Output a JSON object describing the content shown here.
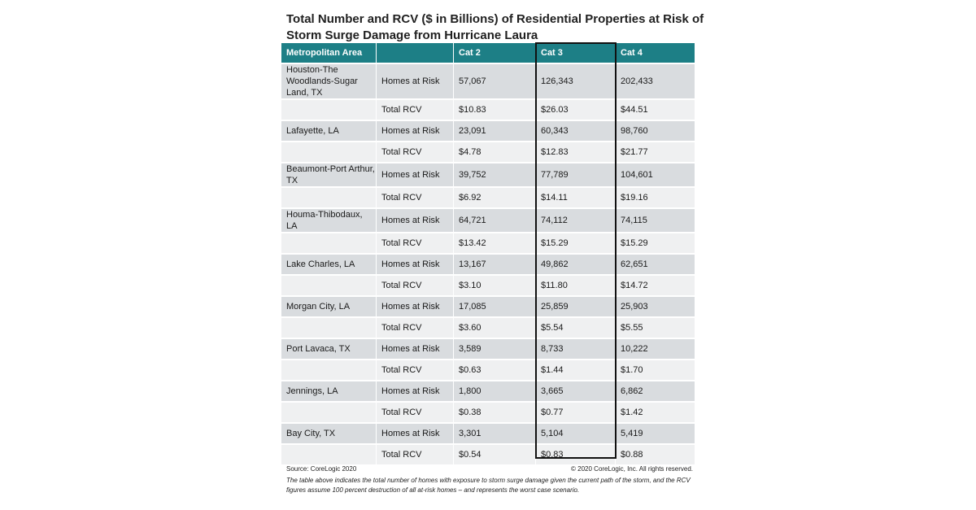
{
  "title": "Total Number and RCV ($ in Billions) of Residential Properties at Risk of Storm Surge Damage from Hurricane Laura",
  "chart_data": {
    "type": "table",
    "title": "Total Number and RCV ($ in Billions) of Residential Properties at Risk of Storm Surge Damage from Hurricane Laura",
    "columns": [
      "Metropolitan Area",
      "",
      "Cat 2",
      "Cat 3",
      "Cat 4"
    ],
    "highlighted_column": "Cat 3",
    "rows": [
      {
        "area": "Houston-The Woodlands-Sugar Land, TX",
        "metric": "Homes at Risk",
        "cat2": "57,067",
        "cat3": "126,343",
        "cat4": "202,433"
      },
      {
        "area": "",
        "metric": "Total RCV",
        "cat2": "$10.83",
        "cat3": "$26.03",
        "cat4": "$44.51"
      },
      {
        "area": "Lafayette, LA",
        "metric": "Homes at Risk",
        "cat2": "23,091",
        "cat3": "60,343",
        "cat4": "98,760"
      },
      {
        "area": "",
        "metric": "Total RCV",
        "cat2": "$4.78",
        "cat3": "$12.83",
        "cat4": "$21.77"
      },
      {
        "area": "Beaumont-Port Arthur, TX",
        "metric": "Homes at Risk",
        "cat2": "39,752",
        "cat3": "77,789",
        "cat4": "104,601"
      },
      {
        "area": "",
        "metric": "Total RCV",
        "cat2": "$6.92",
        "cat3": "$14.11",
        "cat4": "$19.16"
      },
      {
        "area": "Houma-Thibodaux, LA",
        "metric": "Homes at Risk",
        "cat2": "64,721",
        "cat3": "74,112",
        "cat4": "74,115"
      },
      {
        "area": "",
        "metric": "Total RCV",
        "cat2": "$13.42",
        "cat3": "$15.29",
        "cat4": "$15.29"
      },
      {
        "area": "Lake Charles, LA",
        "metric": "Homes at Risk",
        "cat2": "13,167",
        "cat3": "49,862",
        "cat4": "62,651"
      },
      {
        "area": "",
        "metric": "Total RCV",
        "cat2": "$3.10",
        "cat3": "$11.80",
        "cat4": "$14.72"
      },
      {
        "area": "Morgan City, LA",
        "metric": "Homes at Risk",
        "cat2": "17,085",
        "cat3": "25,859",
        "cat4": "25,903"
      },
      {
        "area": "",
        "metric": "Total RCV",
        "cat2": "$3.60",
        "cat3": "$5.54",
        "cat4": "$5.55"
      },
      {
        "area": "Port Lavaca, TX",
        "metric": "Homes at Risk",
        "cat2": "3,589",
        "cat3": "8,733",
        "cat4": "10,222"
      },
      {
        "area": "",
        "metric": "Total RCV",
        "cat2": "$0.63",
        "cat3": "$1.44",
        "cat4": "$1.70"
      },
      {
        "area": "Jennings, LA",
        "metric": "Homes at Risk",
        "cat2": "1,800",
        "cat3": "3,665",
        "cat4": "6,862"
      },
      {
        "area": "",
        "metric": "Total RCV",
        "cat2": "$0.38",
        "cat3": "$0.77",
        "cat4": "$1.42"
      },
      {
        "area": "Bay City, TX",
        "metric": "Homes at Risk",
        "cat2": "3,301",
        "cat3": "5,104",
        "cat4": "5,419"
      },
      {
        "area": "",
        "metric": "Total RCV",
        "cat2": "$0.54",
        "cat3": "$0.83",
        "cat4": "$0.88"
      }
    ]
  },
  "footer": {
    "source": "Source: CoreLogic 2020",
    "copyright": "© 2020 CoreLogic, Inc. All rights reserved.",
    "note": "The table above indicates the total number of homes with exposure to storm surge damage given the current path of the storm, and the RCV figures assume 100 percent destruction of all at-risk homes – and represents the worst case scenario."
  },
  "colors": {
    "header": "#1d7f86",
    "row_shade": "#d9dcdf",
    "row_plain": "#eff0f1",
    "highlight_border": "#111111"
  }
}
